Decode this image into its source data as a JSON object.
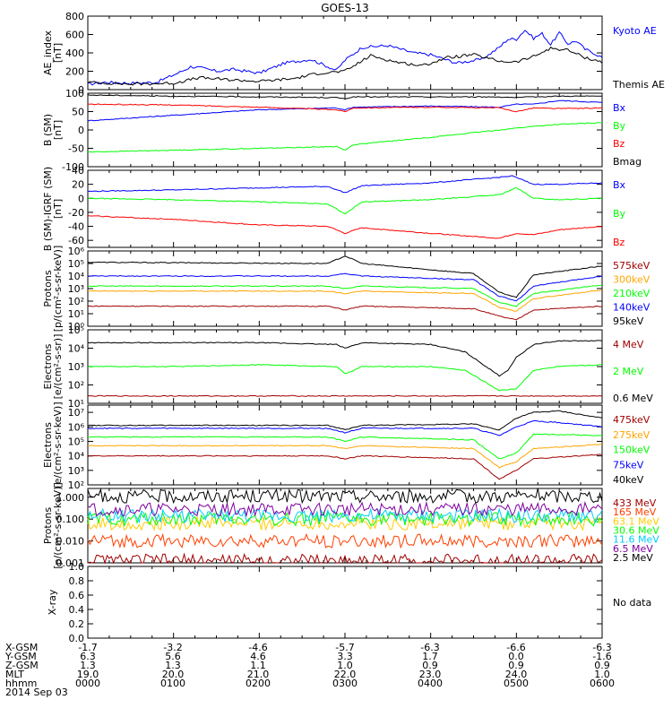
{
  "title": "GOES-13",
  "colors": {
    "blue": "#0000ff",
    "green": "#00ff00",
    "red": "#ff0000",
    "black": "#000000",
    "orange": "#ffa500",
    "darkred": "#a00000",
    "cyan": "#00ccff",
    "purple": "#7f00a0"
  },
  "chart_data": [
    {
      "id": "ae",
      "type": "line",
      "ylabel": "AE_index\n[nT]",
      "scale": "linear",
      "ylim": [
        0,
        800
      ],
      "yticks": [
        "0",
        "200",
        "400",
        "600",
        "800"
      ],
      "ytick_values": [
        0,
        200,
        400,
        600,
        800
      ],
      "x_hours": [
        0,
        6
      ],
      "series": [
        {
          "name": "Kyoto AE",
          "color": "#0000ff",
          "x": [
            0,
            0.2,
            0.5,
            0.8,
            1.1,
            1.2,
            1.3,
            1.5,
            1.7,
            2.0,
            2.3,
            2.6,
            2.9,
            3.0,
            3.2,
            3.5,
            3.8,
            4.0,
            4.3,
            4.6,
            4.8,
            4.9,
            5.0,
            5.1,
            5.2,
            5.3,
            5.4,
            5.5,
            5.6,
            5.7,
            5.8,
            5.9,
            6.0
          ],
          "y": [
            60,
            80,
            70,
            80,
            200,
            250,
            240,
            200,
            220,
            180,
            290,
            330,
            210,
            320,
            460,
            480,
            400,
            380,
            290,
            330,
            460,
            550,
            550,
            650,
            560,
            610,
            490,
            620,
            500,
            530,
            440,
            400,
            350
          ]
        },
        {
          "name": "Themis AE",
          "color": "#000000",
          "x": [
            0,
            0.5,
            1.0,
            1.3,
            1.6,
            2.0,
            2.4,
            2.7,
            3.0,
            3.3,
            3.6,
            3.9,
            4.2,
            4.5,
            4.8,
            5.0,
            5.2,
            5.4,
            5.6,
            5.8,
            6.0
          ],
          "y": [
            80,
            60,
            70,
            130,
            110,
            90,
            120,
            180,
            200,
            370,
            300,
            260,
            350,
            380,
            310,
            300,
            360,
            450,
            430,
            350,
            300
          ]
        }
      ]
    },
    {
      "id": "bsm",
      "type": "line",
      "ylabel": "B (SM)\n[nT]",
      "scale": "linear",
      "ylim": [
        -100,
        100
      ],
      "yticks": [
        "-100",
        "-50",
        "0",
        "50",
        "100"
      ],
      "ytick_values": [
        -100,
        -50,
        0,
        50,
        100
      ],
      "x_hours": [
        0,
        6
      ],
      "series": [
        {
          "name": "Bx",
          "color": "#0000ff",
          "x": [
            0,
            1,
            2,
            2.9,
            3.0,
            3.1,
            4,
            4.8,
            5.0,
            5.2,
            5.5,
            6.0
          ],
          "y": [
            25,
            40,
            55,
            60,
            55,
            62,
            65,
            62,
            70,
            70,
            80,
            75
          ]
        },
        {
          "name": "By",
          "color": "#00ff00",
          "x": [
            0,
            1,
            2,
            2.9,
            3.0,
            3.1,
            4,
            4.8,
            5.0,
            5.2,
            5.5,
            6.0
          ],
          "y": [
            -60,
            -55,
            -50,
            -45,
            -55,
            -40,
            -20,
            0,
            5,
            10,
            15,
            20
          ]
        },
        {
          "name": "Bz",
          "color": "#ff0000",
          "x": [
            0,
            1,
            2,
            2.9,
            3.0,
            3.1,
            4,
            4.8,
            5.0,
            5.2,
            5.5,
            6.0
          ],
          "y": [
            70,
            68,
            62,
            55,
            50,
            60,
            62,
            60,
            50,
            60,
            58,
            60
          ]
        },
        {
          "name": "Bmag",
          "color": "#000000",
          "x": [
            0,
            1,
            2,
            2.9,
            3.0,
            3.1,
            4,
            4.8,
            5.0,
            5.2,
            5.5,
            6.0
          ],
          "y": [
            95,
            92,
            90,
            88,
            85,
            90,
            90,
            90,
            88,
            90,
            92,
            92
          ]
        }
      ]
    },
    {
      "id": "bigrf",
      "type": "line",
      "ylabel": "B (SM)-IGRF (SM)\n[nT]",
      "scale": "linear",
      "ylim": [
        -70,
        40
      ],
      "yticks": [
        "-60",
        "-40",
        "-20",
        "0",
        "20",
        "40"
      ],
      "ytick_values": [
        -60,
        -40,
        -20,
        0,
        20,
        40
      ],
      "x_hours": [
        0,
        6
      ],
      "series": [
        {
          "name": "Bx",
          "color": "#0000ff",
          "x": [
            0,
            1,
            2,
            2.8,
            3.0,
            3.2,
            4,
            4.8,
            4.95,
            5.2,
            5.5,
            6.0
          ],
          "y": [
            10,
            12,
            15,
            17,
            8,
            18,
            22,
            30,
            32,
            20,
            20,
            22
          ]
        },
        {
          "name": "By",
          "color": "#00ff00",
          "x": [
            0,
            1,
            2,
            2.8,
            3.0,
            3.2,
            4,
            4.8,
            5.0,
            5.2,
            5.5,
            6.0
          ],
          "y": [
            0,
            -2,
            -5,
            -8,
            -22,
            -5,
            -2,
            5,
            15,
            0,
            -2,
            0
          ]
        },
        {
          "name": "Bz",
          "color": "#ff0000",
          "x": [
            0,
            1,
            2,
            2.8,
            3.0,
            3.2,
            4,
            4.8,
            5.0,
            5.2,
            5.5,
            6.0
          ],
          "y": [
            -25,
            -30,
            -38,
            -40,
            -50,
            -42,
            -50,
            -57,
            -50,
            -52,
            -45,
            -40
          ]
        }
      ]
    },
    {
      "id": "protons1",
      "type": "line",
      "ylabel": "Protons\n[p/(cm²-s-sr-keV)]",
      "scale": "log",
      "ylim": [
        0,
        6
      ],
      "yticks": [
        "10⁰",
        "10¹",
        "10²",
        "10³",
        "10⁴",
        "10⁵",
        "10⁶"
      ],
      "ytick_values": [
        0,
        1,
        2,
        3,
        4,
        5,
        6
      ],
      "x_hours": [
        0,
        6
      ],
      "series": [
        {
          "name": "575keV",
          "color": "#a00000",
          "x": [
            0,
            2.8,
            3.0,
            3.2,
            4.5,
            4.8,
            5.0,
            5.2,
            6.0
          ],
          "y": [
            1.6,
            1.6,
            1.3,
            1.6,
            1.4,
            0.8,
            0.5,
            1.3,
            1.6
          ]
        },
        {
          "name": "300keV",
          "color": "#ffa500",
          "x": [
            0,
            2.8,
            3.0,
            3.2,
            4.5,
            4.8,
            5.0,
            5.2,
            6.0
          ],
          "y": [
            2.8,
            2.8,
            2.6,
            2.8,
            2.6,
            1.5,
            1.2,
            2.2,
            2.9
          ]
        },
        {
          "name": "210keV",
          "color": "#00ff00",
          "x": [
            0,
            2.8,
            3.0,
            3.2,
            4.5,
            4.8,
            5.0,
            5.2,
            6.0
          ],
          "y": [
            3.2,
            3.2,
            3.0,
            3.2,
            3.0,
            1.9,
            1.6,
            2.6,
            3.3
          ]
        },
        {
          "name": "140keV",
          "color": "#0000ff",
          "x": [
            0,
            2.8,
            3.0,
            3.2,
            4.5,
            4.8,
            5.0,
            5.2,
            6.0
          ],
          "y": [
            4.0,
            4.0,
            4.2,
            4.0,
            3.7,
            2.4,
            2.0,
            3.2,
            4.0
          ]
        },
        {
          "name": "95keV",
          "color": "#000000",
          "x": [
            0,
            2.8,
            3.0,
            3.2,
            4.0,
            4.5,
            4.8,
            5.0,
            5.2,
            6.0
          ],
          "y": [
            5.1,
            5.0,
            5.6,
            5.0,
            4.5,
            4.2,
            2.7,
            2.3,
            4.1,
            4.8
          ]
        }
      ]
    },
    {
      "id": "electrons1",
      "type": "line",
      "ylabel": "Electrons\n[e/(cm²-s-sr)]",
      "scale": "log",
      "ylim": [
        1,
        5
      ],
      "yticks": [
        "10¹",
        "10²",
        "10³",
        "10⁴",
        "10⁵"
      ],
      "ytick_values": [
        1,
        2,
        3,
        4,
        5
      ],
      "x_hours": [
        0,
        6
      ],
      "series": [
        {
          "name": "4 MeV",
          "color": "#a00000",
          "x": [
            0,
            1,
            2,
            3,
            4,
            5,
            6
          ],
          "y": [
            1.4,
            1.4,
            1.4,
            1.4,
            1.4,
            1.4,
            1.4
          ]
        },
        {
          "name": "2 MeV",
          "color": "#00ff00",
          "x": [
            0,
            1,
            2,
            2.9,
            3.0,
            3.2,
            4,
            4.4,
            4.8,
            5.0,
            5.2,
            5.5,
            6.0
          ],
          "y": [
            3.0,
            3.0,
            3.1,
            3.0,
            2.6,
            3.0,
            3.0,
            2.8,
            1.7,
            1.8,
            2.8,
            3.0,
            3.1
          ]
        },
        {
          "name": "0.6 MeV",
          "color": "#000000",
          "x": [
            0,
            1,
            2,
            2.9,
            3.0,
            3.2,
            4,
            4.4,
            4.8,
            4.9,
            5.0,
            5.2,
            5.5,
            6.0
          ],
          "y": [
            4.3,
            4.3,
            4.3,
            4.2,
            4.0,
            4.3,
            4.2,
            3.8,
            2.5,
            2.8,
            3.5,
            4.2,
            4.4,
            4.4
          ]
        }
      ]
    },
    {
      "id": "electrons2",
      "type": "line",
      "ylabel": "Electrons\n[e/(cm²-s-sr-keV)]",
      "scale": "log",
      "ylim": [
        2,
        7.5
      ],
      "yticks": [
        "10²",
        "10³",
        "10⁴",
        "10⁵",
        "10⁶",
        "10⁷",
        "10⁸"
      ],
      "ytick_values": [
        2,
        3,
        4,
        5,
        6,
        7,
        8
      ],
      "x_hours": [
        0,
        6
      ],
      "series": [
        {
          "name": "475keV",
          "color": "#a00000",
          "x": [
            0,
            2.8,
            3.0,
            3.2,
            4.5,
            4.8,
            5.0,
            5.2,
            6.0
          ],
          "y": [
            4.0,
            4.0,
            3.8,
            4.0,
            3.8,
            2.4,
            3.0,
            3.8,
            4.1
          ]
        },
        {
          "name": "275keV",
          "color": "#ffa500",
          "x": [
            0,
            2.8,
            3.0,
            3.2,
            4.5,
            4.8,
            5.0,
            5.2,
            6.0
          ],
          "y": [
            4.7,
            4.7,
            4.5,
            4.7,
            4.5,
            3.2,
            3.6,
            4.5,
            4.8
          ]
        },
        {
          "name": "150keV",
          "color": "#00ff00",
          "x": [
            0,
            2.8,
            3.0,
            3.2,
            4.5,
            4.8,
            5.0,
            5.2,
            6.0
          ],
          "y": [
            5.3,
            5.3,
            5.0,
            5.3,
            5.1,
            3.8,
            4.2,
            5.5,
            5.4
          ]
        },
        {
          "name": "75keV",
          "color": "#0000ff",
          "x": [
            0,
            2.8,
            3.0,
            3.2,
            4.5,
            4.8,
            5.0,
            5.2,
            5.5,
            6.0
          ],
          "y": [
            5.9,
            5.9,
            5.6,
            5.9,
            5.9,
            5.4,
            6.0,
            6.4,
            6.3,
            6.0
          ]
        },
        {
          "name": "40keV",
          "color": "#000000",
          "x": [
            0,
            2.8,
            3.0,
            3.2,
            4.5,
            4.8,
            5.0,
            5.2,
            5.5,
            6.0
          ],
          "y": [
            6.1,
            6.1,
            5.8,
            6.1,
            6.2,
            5.8,
            6.6,
            7.0,
            7.1,
            6.6
          ]
        }
      ]
    },
    {
      "id": "protons2",
      "type": "line",
      "ylabel": "Protons\n[p/(cm²-s-sr-keV)]",
      "scale": "log",
      "ylim": [
        -3,
        0.4
      ],
      "yticks": [
        "0.001",
        "0.010",
        "0.100",
        "1.000"
      ],
      "ytick_values": [
        -3,
        -2,
        -1,
        0
      ],
      "x_hours": [
        0,
        6
      ],
      "series": [
        {
          "name": "433 MeV",
          "color": "#a00000",
          "x": [
            0,
            6
          ],
          "y": [
            -2.9,
            -2.9
          ]
        },
        {
          "name": "165 MeV",
          "color": "#ff4000",
          "x": [
            0,
            6
          ],
          "y": [
            -2.0,
            -2.0
          ]
        },
        {
          "name": "63.1 MeV",
          "color": "#ffcc00",
          "x": [
            0,
            6
          ],
          "y": [
            -1.2,
            -1.2
          ]
        },
        {
          "name": "30.6 MeV",
          "color": "#00ff00",
          "x": [
            0,
            6
          ],
          "y": [
            -1.0,
            -1.0
          ]
        },
        {
          "name": "11.6 MeV",
          "color": "#00ccff",
          "x": [
            0,
            6
          ],
          "y": [
            -0.85,
            -0.85
          ]
        },
        {
          "name": "6.5 MeV",
          "color": "#7f00a0",
          "x": [
            0,
            6
          ],
          "y": [
            -0.55,
            -0.55
          ]
        },
        {
          "name": "2.5 MeV",
          "color": "#000000",
          "x": [
            0,
            5.2,
            5.25,
            5.3,
            6
          ],
          "y": [
            0.05,
            0.05,
            0.2,
            0.05,
            0.05
          ]
        }
      ]
    },
    {
      "id": "xray",
      "type": "line",
      "ylabel": "X-ray",
      "scale": "linear",
      "ylim": [
        0,
        1
      ],
      "yticks": [
        "0.0",
        "0.2",
        "0.4",
        "0.6",
        "0.8",
        "1.0"
      ],
      "ytick_values": [
        0,
        0.2,
        0.4,
        0.6,
        0.8,
        1.0
      ],
      "x_hours": [
        0,
        6
      ],
      "series": [],
      "note": "No data"
    }
  ],
  "xaxis": {
    "row_labels": [
      "X-GSM",
      "Y-GSM",
      "Z-GSM",
      "MLT",
      "hhmm",
      "2014 Sep 03"
    ],
    "columns": [
      [
        "-1.7",
        "6.3",
        "1.3",
        "19.0",
        "0000"
      ],
      [
        "-3.2",
        "5.6",
        "1.3",
        "20.0",
        "0100"
      ],
      [
        "-4.6",
        "4.6",
        "1.1",
        "21.0",
        "0200"
      ],
      [
        "-5.7",
        "3.3",
        "1.0",
        "22.0",
        "0300"
      ],
      [
        "-6.3",
        "1.7",
        "0.9",
        "23.0",
        "0400"
      ],
      [
        "-6.6",
        "0.0",
        "0.9",
        "24.0",
        "0500"
      ],
      [
        "-6.3",
        "-1.6",
        "0.9",
        "1.0",
        "0600"
      ]
    ]
  }
}
